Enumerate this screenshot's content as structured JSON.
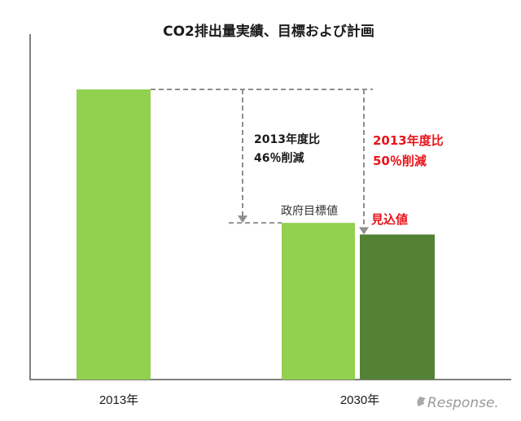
{
  "chart_data": {
    "type": "bar",
    "title": "CO2排出量実績、目標および計画",
    "categories": [
      "2013年",
      "2030年"
    ],
    "series": [
      {
        "category": "2013年",
        "value": 100,
        "color": "#92d050"
      },
      {
        "category": "2030年",
        "value": 54,
        "color": "#92d050",
        "label": "政府目標値"
      },
      {
        "category": "2030年",
        "value": 50,
        "color": "#548235",
        "label": "見込値"
      }
    ],
    "ylim": [
      0,
      100
    ],
    "grid": false,
    "annotations": [
      {
        "text_line1": "2013年度比",
        "text_line2": "46％削減",
        "color": "#1a1a1a"
      },
      {
        "text_line1": "2013年度比",
        "text_line2": "50％削減",
        "color": "#e8141b"
      }
    ],
    "watermark": "Response."
  }
}
